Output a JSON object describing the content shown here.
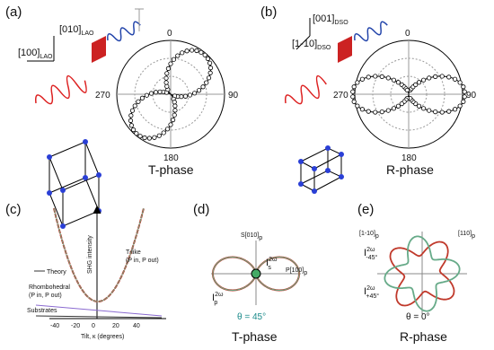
{
  "panels": {
    "a": {
      "label": "(a)",
      "axis1": {
        "text": "[010]",
        "sub": "LAO"
      },
      "axis2": {
        "text": "[100]",
        "sub": "LAO"
      },
      "angles": [
        "0",
        "90",
        "180",
        "270"
      ],
      "phase": "T-phase"
    },
    "b": {
      "label": "(b)",
      "axis1": {
        "text": "[001]",
        "sub": "DSO"
      },
      "axis2": {
        "text": "[1-10]",
        "sub": "DSO"
      },
      "angles": [
        "0",
        "90",
        "180",
        "270"
      ],
      "phase": "R-phase"
    },
    "c": {
      "label": "(c)",
      "x_label": "Tilt, κ (degrees)",
      "y_label": "SHG intensity",
      "x_ticks": [
        "-40",
        "-20",
        "0",
        "20",
        "40"
      ],
      "legend": "Theory",
      "t_like": "T-like",
      "t_like_sub": "(P in, P out)",
      "rhombo": "Rhombohedral",
      "rhombo_sub": "(P in, P out)",
      "substrates": "Substrates"
    },
    "d": {
      "label": "(d)",
      "s_axis": {
        "text": "S[010]",
        "sub": "p"
      },
      "p_axis": {
        "text": "P[100]",
        "sub": "p"
      },
      "i_s": {
        "text": "I",
        "sup": "2ω",
        "sub": "s"
      },
      "i_p": {
        "text": "I",
        "sup": "2ω",
        "sub": "p"
      },
      "theta": "θ = 45°",
      "phase": "T-phase"
    },
    "e": {
      "label": "(e)",
      "axis1": {
        "text": "[1-10]",
        "sub": "p"
      },
      "axis2": {
        "text": "[110]",
        "sub": "p"
      },
      "i_m45": {
        "text": "I",
        "sup": "2ω",
        "sub": "-45°"
      },
      "i_p45": {
        "text": "I",
        "sup": "2ω",
        "sub": "+45°"
      },
      "theta": "θ = 0°",
      "phase": "R-phase"
    }
  }
}
